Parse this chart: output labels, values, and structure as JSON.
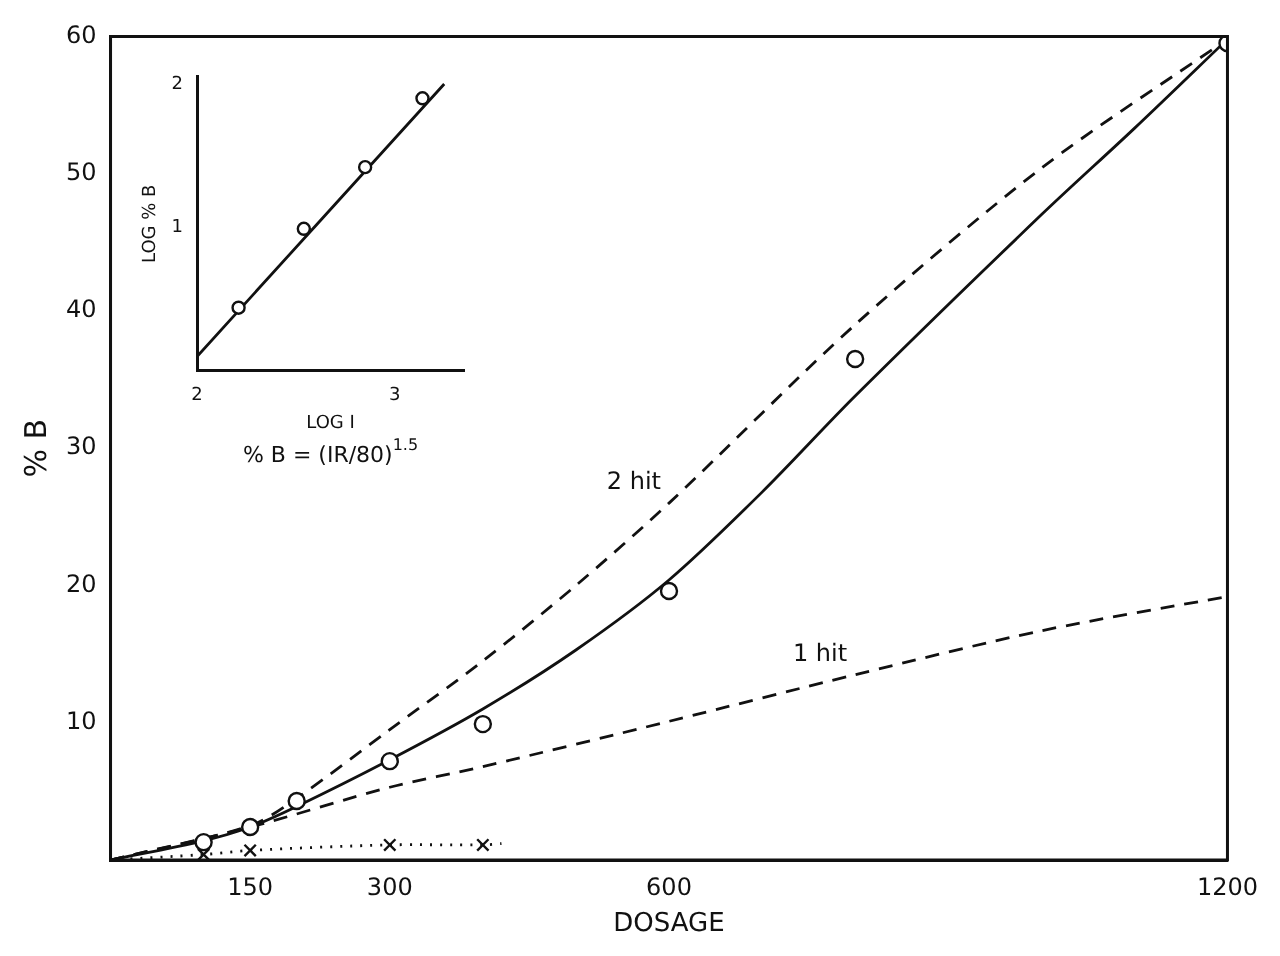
{
  "chart_data": [
    {
      "type": "line",
      "xlabel": "DOSAGE",
      "ylabel": "% B",
      "xlim": [
        0,
        1200
      ],
      "ylim": [
        0,
        60
      ],
      "xticks": [
        150,
        300,
        600,
        1200
      ],
      "yticks": [
        10,
        20,
        30,
        40,
        50,
        60
      ],
      "series": [
        {
          "type": "scatter",
          "color": "#111111",
          "marker": "circle",
          "x": [
            100,
            150,
            200,
            300,
            400,
            600,
            800,
            1200
          ],
          "values": [
            1.3,
            2.4,
            4.3,
            7.2,
            9.9,
            19.6,
            36.5,
            59.5
          ]
        },
        {
          "type": "line",
          "color": "#111111",
          "line_style": "solid",
          "marker": "none",
          "x": [
            0,
            100,
            150,
            200,
            300,
            400,
            500,
            600,
            700,
            800,
            1000,
            1100,
            1200
          ],
          "values": [
            0,
            1.4,
            2.4,
            3.9,
            7.3,
            11,
            15.3,
            20.4,
            26.8,
            33.8,
            47,
            53.3,
            59.8
          ]
        },
        {
          "type": "line",
          "color": "#111111",
          "line_style": "dashed",
          "marker": "none",
          "x": [
            0,
            150,
            200,
            300,
            400,
            500,
            600,
            800,
            1000,
            1200
          ],
          "values": [
            0,
            2.5,
            4.5,
            9.5,
            14.5,
            20,
            26,
            39,
            50.4,
            59.8
          ]
        },
        {
          "type": "line",
          "color": "#111111",
          "line_style": "dashed",
          "marker": "none",
          "x": [
            0,
            150,
            300,
            400,
            600,
            800,
            1000,
            1200
          ],
          "values": [
            0,
            2.4,
            5.3,
            6.8,
            10.1,
            13.5,
            16.7,
            19.2
          ]
        },
        {
          "type": "line",
          "color": "#111111",
          "line_style": "dotted",
          "marker": "none",
          "x": [
            0,
            100,
            150,
            300,
            400,
            420
          ],
          "values": [
            0,
            0.4,
            0.7,
            1.1,
            1.1,
            1.2
          ]
        },
        {
          "type": "scatter",
          "color": "#111111",
          "marker": "cross",
          "x": [
            100,
            150,
            300,
            400
          ],
          "values": [
            0.4,
            0.7,
            1.1,
            1.1
          ]
        }
      ],
      "annotations": [
        {
          "text": "2 hit",
          "x": 600,
          "y": 26
        },
        {
          "text": "1 hit",
          "x": 800,
          "y": 13.5
        }
      ]
    },
    {
      "type": "line",
      "xlabel": "LOG I",
      "ylabel": "LOG % B",
      "xlim": [
        2,
        3.35
      ],
      "ylim": [
        0,
        2.05
      ],
      "xticks": [
        2,
        3
      ],
      "yticks": [
        1,
        2
      ],
      "series": [
        {
          "type": "scatter",
          "color": "#111111",
          "marker": "circle",
          "x": [
            2.21,
            2.54,
            2.85,
            3.14
          ],
          "values": [
            0.44,
            0.99,
            1.42,
            1.9
          ]
        },
        {
          "type": "line",
          "color": "#111111",
          "line_style": "solid",
          "marker": "none",
          "x": [
            2,
            3.25
          ],
          "values": [
            0.1,
            2.0
          ]
        }
      ],
      "annotations": [
        "% B = (IR/80)$^{1.5}$"
      ]
    }
  ]
}
